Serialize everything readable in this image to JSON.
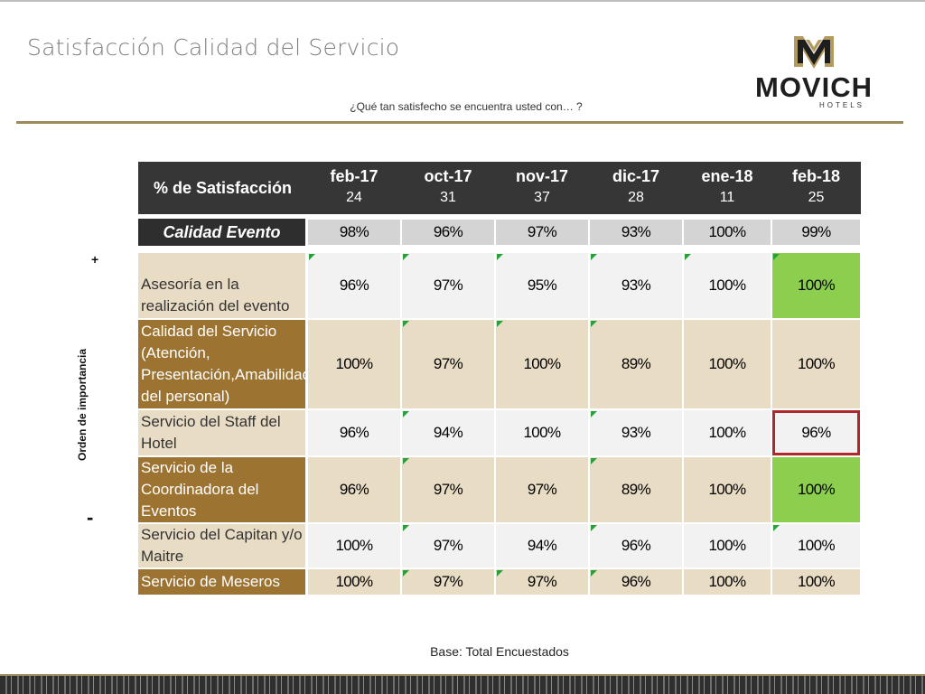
{
  "slide": {
    "title": "Satisfacción Calidad del Servicio",
    "subtitle": "¿Qué tan satisfecho se encuentra usted con… ?",
    "footer": "Base: Total Encuestados"
  },
  "logo": {
    "brand": "MOVICH",
    "sub": "HOTELS"
  },
  "axis": {
    "plus": "+",
    "minus": "-",
    "label": "Orden de importancia"
  },
  "table": {
    "header_label": "% de Satisfacción",
    "columns": [
      {
        "month": "feb-17",
        "n": "24"
      },
      {
        "month": "oct-17",
        "n": "31"
      },
      {
        "month": "nov-17",
        "n": "37"
      },
      {
        "month": "dic-17",
        "n": "28"
      },
      {
        "month": "ene-18",
        "n": "11"
      },
      {
        "month": "feb-18",
        "n": "25"
      }
    ],
    "summary": {
      "label": "Calidad Evento",
      "values": [
        "98%",
        "96%",
        "97%",
        "93%",
        "100%",
        "99%"
      ]
    },
    "rows": [
      {
        "label": "Asesoría en la realización del evento",
        "values": [
          "96%",
          "97%",
          "95%",
          "93%",
          "100%",
          "100%"
        ]
      },
      {
        "label": "Calidad del Servicio (Atención, Presentación,Amabilidad del personal)",
        "values": [
          "100%",
          "97%",
          "100%",
          "89%",
          "100%",
          "100%"
        ]
      },
      {
        "label": "Servicio del Staff del Hotel",
        "values": [
          "96%",
          "94%",
          "100%",
          "93%",
          "100%",
          "96%"
        ]
      },
      {
        "label": "Servicio de la Coordinadora del Eventos",
        "values": [
          "96%",
          "97%",
          "97%",
          "89%",
          "100%",
          "100%"
        ]
      },
      {
        "label": "Servicio del Capitan y/o Maitre",
        "values": [
          "100%",
          "97%",
          "94%",
          "96%",
          "100%",
          "100%"
        ]
      },
      {
        "label": "Servicio de Meseros",
        "values": [
          "100%",
          "97%",
          "97%",
          "96%",
          "100%",
          "100%"
        ]
      }
    ],
    "colors": {
      "highlight_green": "#8ccf4f",
      "highlight_box": "#b0282a",
      "label_dark": "#9d7331",
      "label_light": "#e9dcc4"
    }
  }
}
